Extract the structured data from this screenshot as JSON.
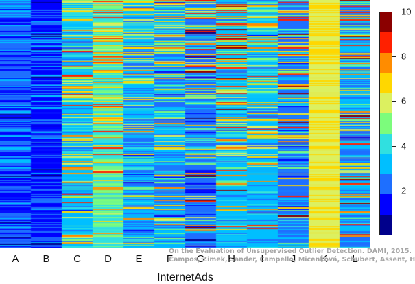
{
  "chart_data": {
    "type": "heatmap",
    "title": "",
    "xlabel": "InternetAds",
    "ylabel": "",
    "columns": [
      "A",
      "B",
      "C",
      "D",
      "E",
      "F",
      "G",
      "H",
      "I",
      "J",
      "K",
      "L"
    ],
    "colorbar": {
      "range": [
        0,
        10
      ],
      "ticks": [
        2,
        4,
        6,
        8,
        10
      ],
      "colors": [
        "#00008b",
        "#0000ff",
        "#1e6fff",
        "#00bfff",
        "#30e0e0",
        "#7cfc7c",
        "#dcf060",
        "#ffd700",
        "#ff8c00",
        "#ff2000",
        "#8b0000"
      ]
    },
    "column_profiles": [
      {
        "column": "A",
        "typical_level": 1.5,
        "description_levels": [
          0,
          3
        ]
      },
      {
        "column": "B",
        "typical_level": 1.2,
        "description_levels": [
          0,
          3
        ]
      },
      {
        "column": "C",
        "typical_level": 3.0,
        "description_levels": [
          1,
          9
        ]
      },
      {
        "column": "D",
        "typical_level": 4.3,
        "description_levels": [
          3,
          9
        ]
      },
      {
        "column": "E",
        "typical_level": 2.5,
        "description_levels": [
          1,
          8
        ]
      },
      {
        "column": "F",
        "typical_level": 2.5,
        "description_levels": [
          1,
          8
        ]
      },
      {
        "column": "G",
        "typical_level": 2.0,
        "description_levels": [
          0,
          10
        ]
      },
      {
        "column": "H",
        "typical_level": 3.0,
        "description_levels": [
          0,
          10
        ]
      },
      {
        "column": "I",
        "typical_level": 3.0,
        "description_levels": [
          1,
          9
        ]
      },
      {
        "column": "J",
        "typical_level": 2.2,
        "description_levels": [
          0,
          10
        ]
      },
      {
        "column": "K",
        "typical_level": 6.3,
        "description_levels": [
          6,
          7
        ]
      },
      {
        "column": "L",
        "typical_level": 2.5,
        "description_levels": [
          1,
          10
        ]
      }
    ],
    "rows_rendered": 300
  },
  "watermark": {
    "line1": "On the Evaluation of Unsupervised Outlier Detection. DAMI, 2015.",
    "line2": "Campos, Zimek, Sander, Campello, Micenková, Schubert, Assent, Houle"
  }
}
